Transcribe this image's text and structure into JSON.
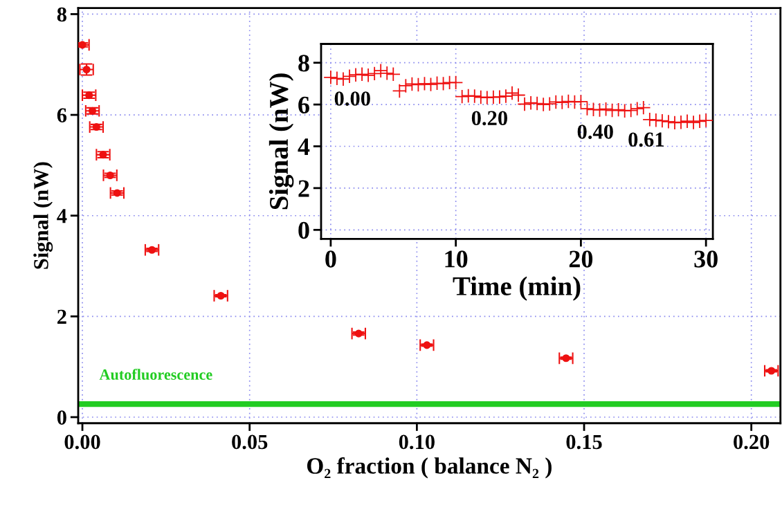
{
  "chart_data": [
    {
      "type": "scatter",
      "xlabel": "O₂ fraction ( balance N₂ )",
      "ylabel": "Signal (nW)",
      "x": [
        0.0,
        0.00125,
        0.002,
        0.003,
        0.0042,
        0.0062,
        0.0083,
        0.0104,
        0.0208,
        0.0414,
        0.0826,
        0.103,
        0.1446,
        0.206
      ],
      "series": [
        {
          "color": "#ee1111",
          "values": [
            7.39,
            6.9,
            6.39,
            6.08,
            5.76,
            5.21,
            4.8,
            4.45,
            3.32,
            2.41,
            1.66,
            1.43,
            1.17,
            0.92
          ],
          "errors": [
            0.04,
            0.11,
            0.06,
            0.06,
            0.05,
            0.06,
            0.04,
            0.04,
            0.03,
            0.02,
            0.03,
            0.02,
            0.02,
            0.02
          ],
          "xerrors": [
            0.002,
            0.002,
            0.002,
            0.002,
            0.002,
            0.002,
            0.002,
            0.002,
            0.002,
            0.002,
            0.002,
            0.002,
            0.002,
            0.002
          ]
        }
      ],
      "marker": "circle",
      "xlim": [
        -0.00125,
        0.2087
      ],
      "ylim": [
        -0.12,
        8.12
      ],
      "xticks": [
        {
          "value": 0,
          "label": "0.00"
        },
        {
          "value": 0.05,
          "label": "0.05"
        },
        {
          "value": 0.1,
          "label": "0.10"
        },
        {
          "value": 0.15,
          "label": "0.15"
        },
        {
          "value": 0.2,
          "label": "0.20"
        }
      ],
      "yticks": [
        0,
        2,
        4,
        6,
        8
      ],
      "grid": true,
      "ref_lines": [
        {
          "axis": "y",
          "value": 0.26,
          "label": "Autofluorescence",
          "color": "#22cc22"
        }
      ]
    },
    {
      "type": "scatter",
      "xlabel": "Time (min)",
      "ylabel": "Signal (nW)",
      "x": [
        0,
        0.5,
        1,
        1.5,
        2,
        2.5,
        3,
        3.5,
        4,
        4.5,
        5,
        5.5,
        6,
        6.5,
        7,
        7.5,
        8,
        8.5,
        9,
        9.5,
        10,
        10.5,
        11,
        11.5,
        12,
        12.5,
        13,
        13.5,
        14,
        14.5,
        15,
        15.5,
        16,
        16.5,
        17,
        17.5,
        18,
        18.5,
        19,
        19.5,
        20,
        20.5,
        21,
        21.5,
        22,
        22.5,
        23,
        23.5,
        24,
        24.5,
        25,
        25.5,
        26,
        26.5,
        27,
        27.5,
        28,
        28.5,
        29,
        29.5,
        30
      ],
      "series": [
        {
          "color": "#ee1111",
          "values": [
            7.3,
            7.25,
            7.22,
            7.35,
            7.42,
            7.45,
            7.4,
            7.48,
            7.62,
            7.5,
            7.45,
            6.65,
            6.9,
            6.98,
            6.95,
            7.0,
            6.96,
            7.02,
            7.0,
            7.05,
            7.05,
            6.38,
            6.42,
            6.4,
            6.35,
            6.33,
            6.35,
            6.36,
            6.4,
            6.55,
            6.45,
            6.02,
            6.08,
            6.05,
            6.0,
            6.03,
            6.12,
            6.1,
            6.15,
            6.12,
            6.14,
            5.8,
            5.76,
            5.74,
            5.78,
            5.72,
            5.75,
            5.7,
            5.72,
            5.8,
            5.85,
            5.28,
            5.25,
            5.22,
            5.18,
            5.13,
            5.15,
            5.2,
            5.14,
            5.2,
            5.24
          ]
        }
      ],
      "marker": "cross",
      "xlim": [
        -0.77,
        30.55
      ],
      "ylim": [
        -0.43,
        8.9
      ],
      "xticks": [
        0,
        10,
        20,
        30
      ],
      "yticks": [
        0,
        2,
        4,
        6,
        8
      ],
      "grid": true,
      "annotations": [
        "0.00",
        "0.20",
        "0.40",
        "0.61"
      ]
    }
  ]
}
